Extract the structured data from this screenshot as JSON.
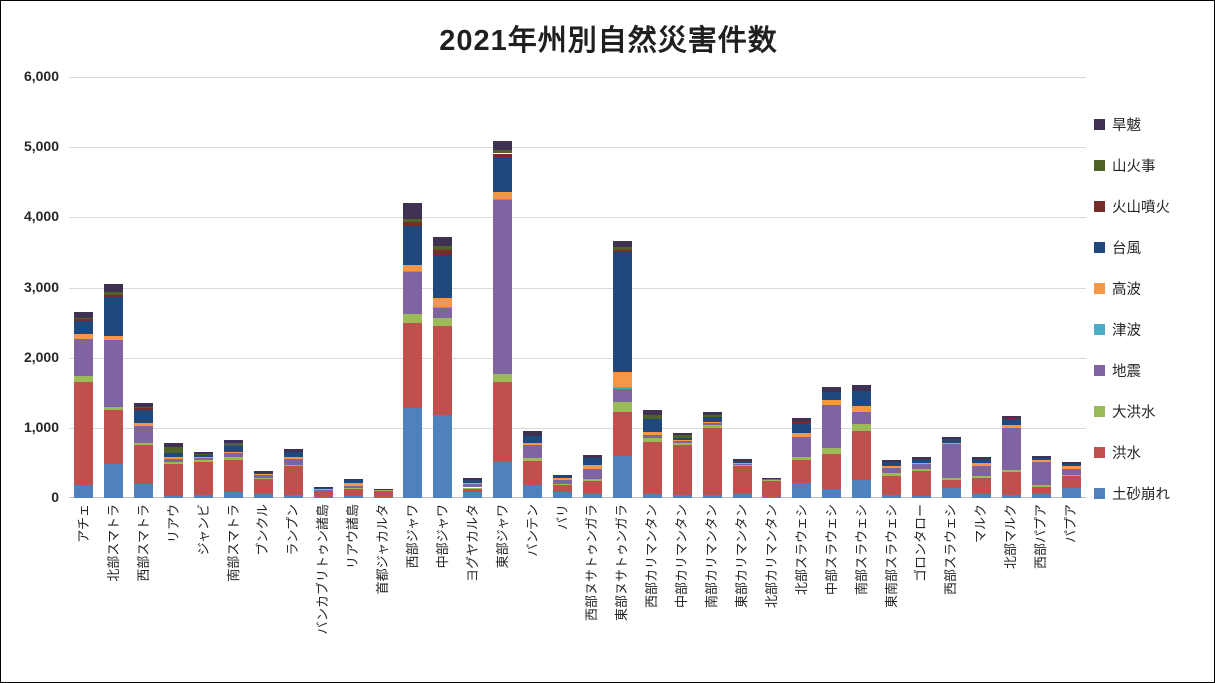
{
  "chart_data": {
    "type": "bar",
    "stacked": true,
    "title": "2021年州別自然災害件数",
    "xlabel": "",
    "ylabel": "",
    "ylim": [
      0,
      6000
    ],
    "ytick_interval": 1000,
    "ytick_labels": [
      "0",
      "1,000",
      "2,000",
      "3,000",
      "4,000",
      "5,000",
      "6,000"
    ],
    "grid": true,
    "gridline_color": "#d9d9d9",
    "legend_position": "right",
    "categories": [
      "アチェ",
      "北部スマトラ",
      "西部スマトラ",
      "リアウ",
      "ジャンビ",
      "南部スマトラ",
      "ブンクル",
      "ランプン",
      "バンカブリトゥン諸島",
      "リアウ諸島",
      "首都ジャカルタ",
      "西部ジャワ",
      "中部ジャワ",
      "ヨグヤカルタ",
      "東部ジャワ",
      "バンテン",
      "バリ",
      "西部ヌサトゥンガラ",
      "東部ヌサトゥンガラ",
      "西部カリマンタン",
      "中部カリマンタン",
      "南部カリマンタン",
      "東部カリマンタン",
      "北部カリマンタン",
      "北部スラウェシ",
      "中部スラウェシ",
      "南部スラウェシ",
      "東南部スラウェシ",
      "ゴロンタロー",
      "西部スラウェシ",
      "マルク",
      "北部マルク",
      "西部パプア",
      "パプア"
    ],
    "series": [
      {
        "name": "土砂崩れ",
        "color": "#4F81BD",
        "values": [
          180,
          480,
          200,
          30,
          40,
          90,
          60,
          50,
          20,
          30,
          10,
          1280,
          1190,
          80,
          520,
          180,
          90,
          60,
          600,
          60,
          40,
          50,
          60,
          20,
          210,
          130,
          260,
          40,
          30,
          140,
          60,
          40,
          60,
          140
        ]
      },
      {
        "name": "洪水",
        "color": "#C0504D",
        "values": [
          1480,
          780,
          550,
          450,
          480,
          450,
          220,
          400,
          80,
          100,
          100,
          1220,
          1260,
          60,
          1130,
          350,
          100,
          180,
          620,
          740,
          720,
          950,
          390,
          230,
          330,
          500,
          700,
          280,
          350,
          120,
          230,
          330,
          100,
          170
        ]
      },
      {
        "name": "大洪水",
        "color": "#9BBB59",
        "values": [
          80,
          40,
          30,
          30,
          20,
          40,
          10,
          20,
          10,
          10,
          10,
          120,
          110,
          10,
          120,
          40,
          10,
          30,
          150,
          50,
          30,
          40,
          20,
          10,
          50,
          80,
          90,
          30,
          40,
          30,
          20,
          30,
          20,
          20
        ]
      },
      {
        "name": "地震",
        "color": "#8064A2",
        "values": [
          520,
          950,
          250,
          50,
          30,
          60,
          40,
          80,
          10,
          30,
          0,
          600,
          150,
          60,
          2480,
          180,
          60,
          150,
          180,
          50,
          20,
          30,
          20,
          10,
          280,
          620,
          180,
          80,
          60,
          480,
          150,
          600,
          340,
          90
        ]
      },
      {
        "name": "津波",
        "color": "#4BACC6",
        "values": [
          0,
          0,
          0,
          0,
          0,
          0,
          0,
          0,
          0,
          0,
          0,
          10,
          10,
          0,
          10,
          0,
          0,
          0,
          30,
          0,
          0,
          0,
          0,
          0,
          0,
          0,
          0,
          0,
          0,
          0,
          0,
          0,
          0,
          0
        ]
      },
      {
        "name": "高波",
        "color": "#F79646",
        "values": [
          80,
          60,
          40,
          20,
          10,
          20,
          10,
          30,
          10,
          40,
          0,
          90,
          130,
          10,
          100,
          40,
          20,
          50,
          220,
          40,
          10,
          20,
          10,
          0,
          60,
          60,
          80,
          30,
          20,
          20,
          40,
          40,
          20,
          30
        ]
      },
      {
        "name": "台風",
        "color": "#1F497D",
        "values": [
          180,
          550,
          180,
          60,
          30,
          80,
          20,
          70,
          20,
          40,
          0,
          550,
          620,
          40,
          500,
          100,
          30,
          100,
          1700,
          180,
          40,
          60,
          30,
          10,
          140,
          120,
          220,
          50,
          50,
          50,
          60,
          80,
          30,
          40
        ]
      },
      {
        "name": "火山噴火",
        "color": "#772C2A",
        "values": [
          30,
          40,
          30,
          0,
          0,
          0,
          0,
          0,
          0,
          0,
          0,
          60,
          60,
          0,
          50,
          0,
          0,
          0,
          40,
          0,
          0,
          0,
          0,
          0,
          30,
          0,
          0,
          0,
          0,
          0,
          0,
          20,
          0,
          0
        ]
      },
      {
        "name": "山火事",
        "color": "#4F6228",
        "values": [
          20,
          30,
          20,
          90,
          20,
          40,
          0,
          0,
          0,
          0,
          0,
          50,
          60,
          0,
          50,
          0,
          0,
          0,
          40,
          60,
          40,
          40,
          0,
          0,
          0,
          0,
          0,
          0,
          0,
          0,
          0,
          0,
          0,
          0
        ]
      },
      {
        "name": "旱魃",
        "color": "#3F3151",
        "values": [
          80,
          120,
          50,
          50,
          30,
          50,
          20,
          50,
          10,
          20,
          10,
          220,
          130,
          20,
          130,
          60,
          20,
          50,
          90,
          80,
          30,
          40,
          30,
          10,
          40,
          70,
          80,
          30,
          30,
          30,
          30,
          30,
          30,
          30
        ]
      }
    ]
  }
}
